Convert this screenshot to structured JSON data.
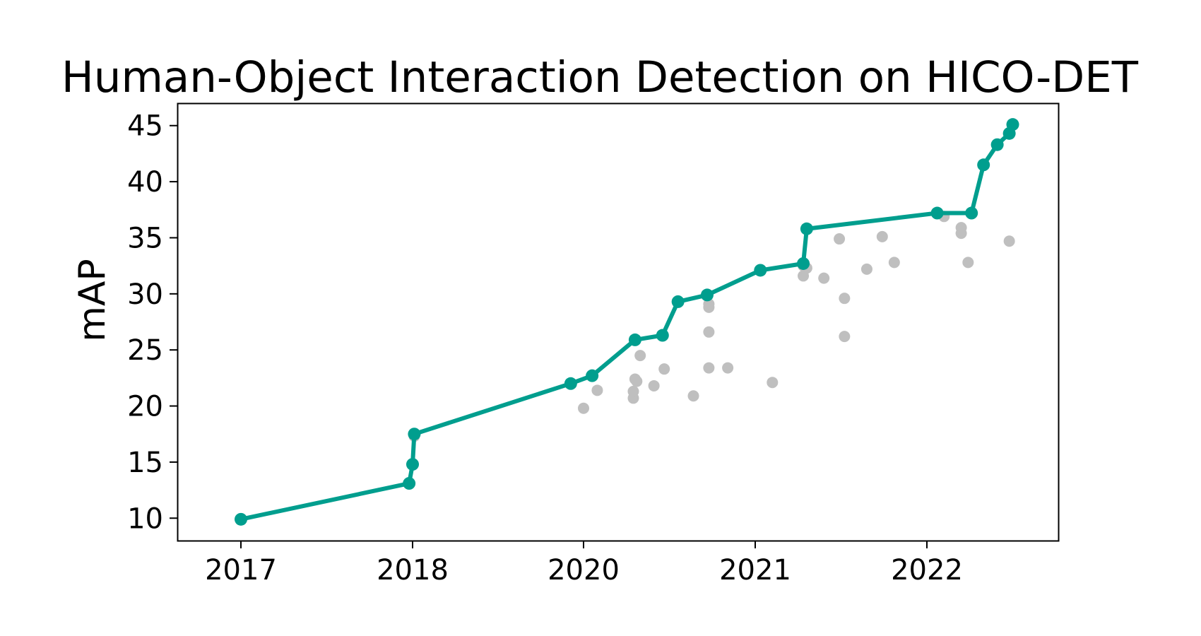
{
  "chart_data": {
    "type": "scatter",
    "title": "Human-Object Interaction Detection on HICO-DET",
    "xlabel": "",
    "ylabel": "mAP",
    "yticks": [
      10,
      15,
      20,
      25,
      30,
      35,
      40,
      45
    ],
    "xticks": [
      "2017",
      "2018",
      "2020",
      "2021",
      "2022"
    ],
    "ylim": [
      8,
      47
    ],
    "grid": false,
    "colors": {
      "sota": "#009e8e",
      "other": "#bfbfbf"
    },
    "series": [
      {
        "x": [
          2017.0,
          2017.98,
          2018.0,
          2018.02,
          2019.85,
          2020.05,
          2020.3,
          2020.46,
          2020.55,
          2020.72,
          2021.03,
          2021.28,
          2021.3,
          2022.06,
          2022.26,
          2022.33,
          2022.41,
          2022.48,
          2022.5
        ],
        "values": [
          9.9,
          13.1,
          14.8,
          17.5,
          22.0,
          22.7,
          25.9,
          26.3,
          29.3,
          29.9,
          32.1,
          32.7,
          35.8,
          37.2,
          37.2,
          41.5,
          43.3,
          44.3,
          45.1
        ]
      },
      {
        "x": [
          2018.02,
          2020.0,
          2020.08,
          2020.29,
          2020.29,
          2020.3,
          2020.31,
          2020.33,
          2020.41,
          2020.47,
          2020.64,
          2020.73,
          2020.73,
          2020.73,
          2020.73,
          2020.84,
          2021.1,
          2021.28,
          2021.28,
          2021.3,
          2021.4,
          2021.49,
          2021.52,
          2021.52,
          2021.65,
          2021.74,
          2021.81,
          2022.1,
          2022.2,
          2022.2,
          2022.24,
          2022.48
        ],
        "values": [
          17.3,
          19.8,
          21.4,
          20.7,
          21.3,
          22.4,
          22.2,
          24.5,
          21.8,
          23.3,
          20.9,
          23.4,
          26.6,
          28.8,
          29.1,
          23.4,
          22.1,
          31.6,
          32.5,
          32.3,
          31.4,
          34.9,
          29.6,
          26.2,
          32.2,
          35.1,
          32.8,
          36.9,
          35.9,
          35.4,
          32.8,
          34.7
        ]
      }
    ]
  }
}
